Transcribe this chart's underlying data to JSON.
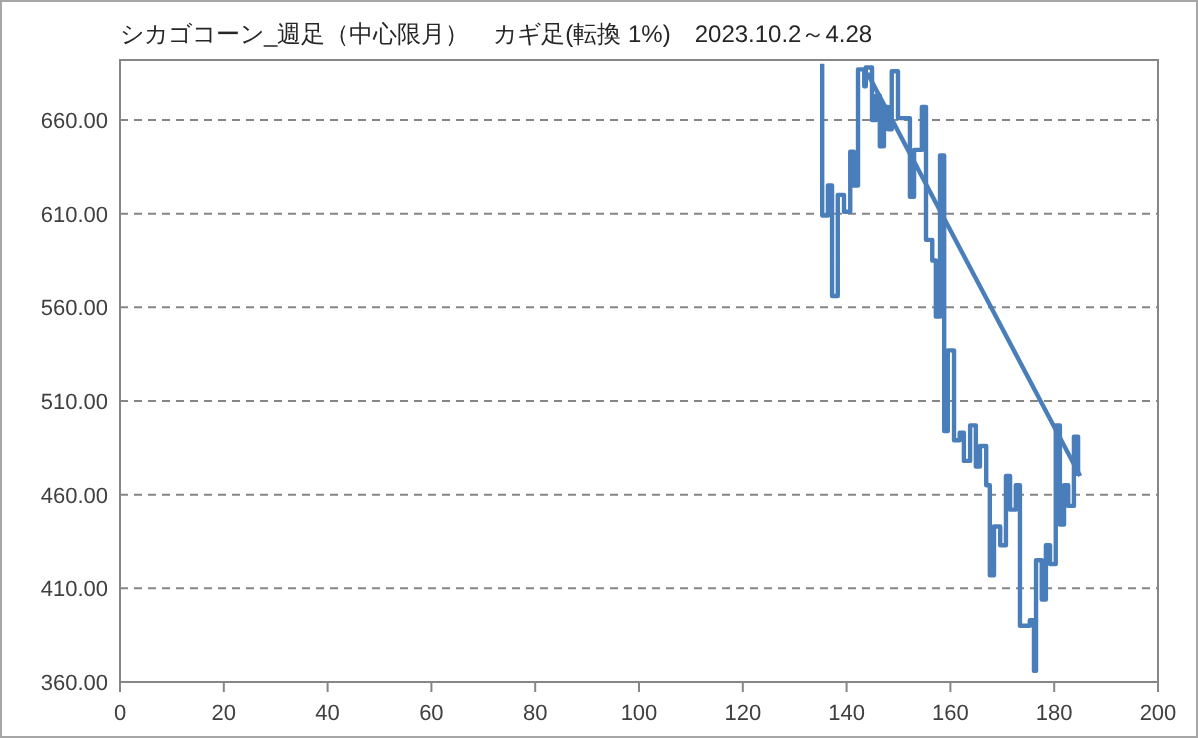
{
  "chart_data": {
    "type": "line",
    "title": "シカゴコーン_週足（中心限月）　カギ足(転換 1%)　2023.10.2～4.28",
    "xlim": [
      0,
      200
    ],
    "xticks": [
      0,
      20,
      40,
      60,
      80,
      100,
      120,
      140,
      160,
      180,
      200
    ],
    "ylim": [
      360,
      692
    ],
    "yticks": [
      {
        "value": 360,
        "label": "360.00"
      },
      {
        "value": 410,
        "label": "410.00"
      },
      {
        "value": 460,
        "label": "460.00"
      },
      {
        "value": 510,
        "label": "510.00"
      },
      {
        "value": 560,
        "label": "560.00"
      },
      {
        "value": 610,
        "label": "610.00"
      },
      {
        "value": 660,
        "label": "660.00"
      }
    ],
    "grid": "y",
    "marker": "none",
    "line_style": "solid",
    "series": [
      {
        "color": "#4a7ebb",
        "x": [
          135.3,
          135.3,
          136.4,
          136.4,
          137.2,
          137.2,
          138.3,
          138.3,
          139.5,
          139.5,
          140.7,
          140.7,
          141.4,
          141.4,
          142.2,
          142.2,
          143.4,
          143.4,
          143.7,
          143.7,
          144.9,
          144.9,
          145.7,
          145.7,
          146.4,
          146.4,
          147.2,
          147.2,
          148,
          148,
          148.7,
          148.7,
          149.9,
          149.9,
          152.2,
          152.2,
          153,
          153,
          154.5,
          154.5,
          155.3,
          155.3,
          156.5,
          156.5,
          157.2,
          157.2,
          158,
          158,
          158.8,
          158.8,
          159.5,
          159.5,
          160.7,
          160.7,
          161.8,
          161.8,
          162.6,
          162.6,
          163.8,
          163.8,
          164.9,
          164.9,
          165.7,
          165.7,
          166.9,
          166.9,
          167.6,
          167.6,
          168.4,
          168.4,
          169.6,
          169.6,
          170.7,
          170.7,
          171.5,
          171.5,
          172.6,
          172.6,
          173.4,
          173.4,
          175.3,
          175.3,
          176.1,
          176.1,
          176.5,
          176.5,
          177.6,
          177.6,
          178.4,
          178.4,
          179.2,
          179.2,
          180.3,
          180.3,
          181.1,
          181.1,
          181.9,
          181.9,
          182.7,
          182.7,
          183.8,
          183.8,
          184.6,
          184.6
        ],
        "values": [
          690,
          609,
          609,
          625,
          625,
          566,
          566,
          620,
          620,
          611,
          611,
          643,
          643,
          625,
          625,
          687,
          687,
          678,
          678,
          688,
          688,
          660,
          660,
          673,
          673,
          646,
          646,
          667,
          667,
          655,
          655,
          686,
          686,
          661,
          661,
          619,
          619,
          644,
          644,
          667,
          667,
          596,
          596,
          585,
          585,
          555,
          555,
          641,
          641,
          494,
          494,
          537,
          537,
          489,
          489,
          493,
          493,
          478,
          478,
          497,
          497,
          475,
          475,
          486,
          486,
          465,
          465,
          417,
          417,
          443,
          443,
          433,
          433,
          470,
          470,
          452,
          452,
          465,
          465,
          390,
          390,
          393,
          393,
          366,
          366,
          425,
          425,
          404,
          404,
          433,
          433,
          423,
          423,
          497,
          497,
          444,
          444,
          465,
          465,
          454,
          454,
          491,
          491,
          470
        ]
      },
      {
        "color": "#4a7ebb",
        "x": [
          144,
          185
        ],
        "values": [
          685,
          470
        ]
      }
    ]
  }
}
